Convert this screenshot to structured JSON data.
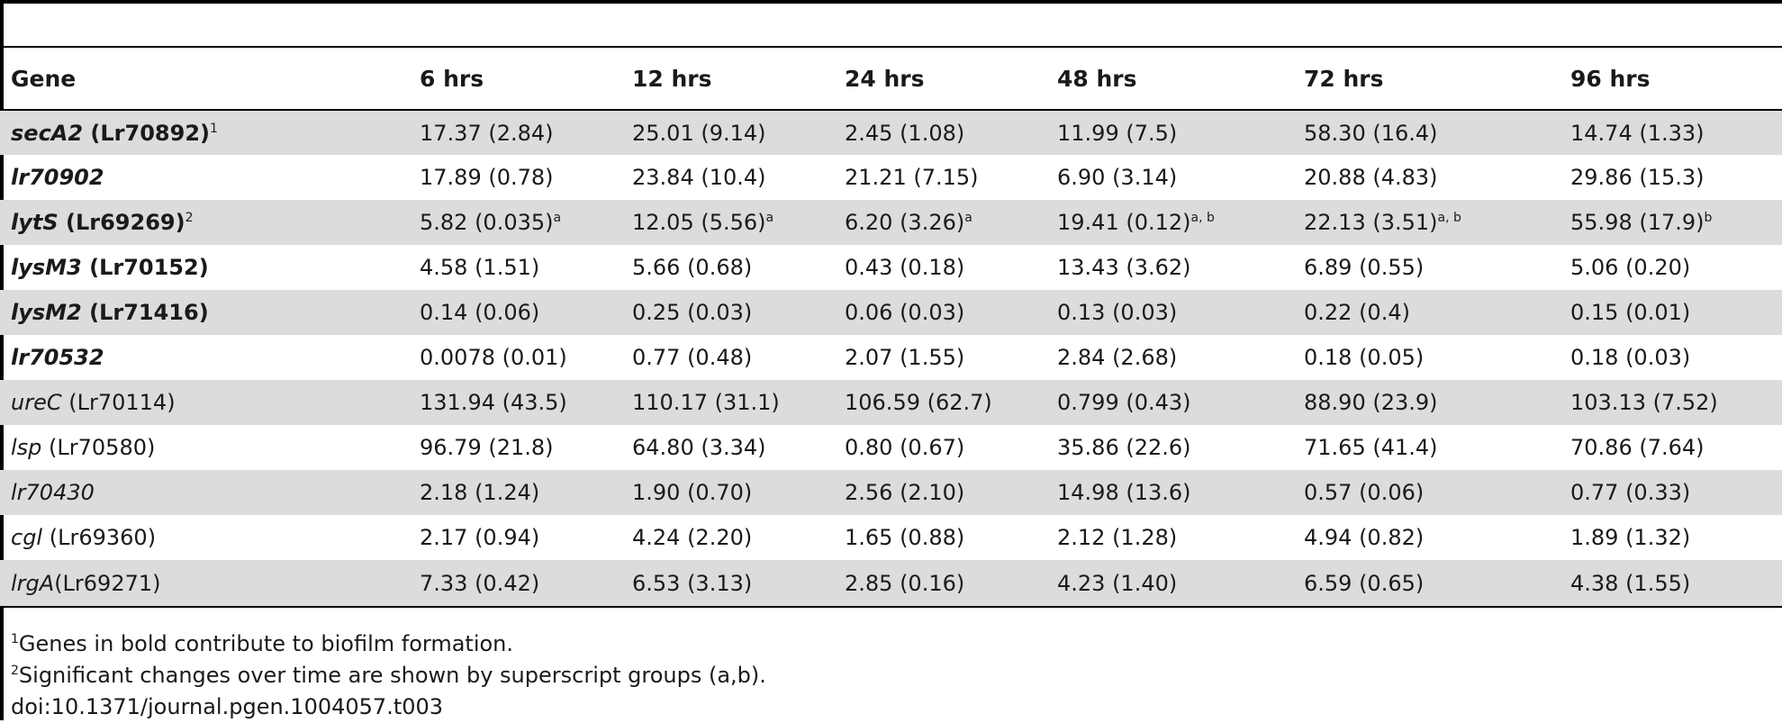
{
  "table": {
    "headers": [
      "Gene",
      "6 hrs",
      "12 hrs",
      "24 hrs",
      "48 hrs",
      "72 hrs",
      "96 hrs"
    ],
    "rows": [
      {
        "gene_italic": "secA2",
        "gene_suffix": " (Lr70892)",
        "gene_sup": "1",
        "bold": true,
        "shaded": true,
        "cells": [
          {
            "v": "17.37 (2.84)",
            "s": ""
          },
          {
            "v": "25.01 (9.14)",
            "s": ""
          },
          {
            "v": "2.45 (1.08)",
            "s": ""
          },
          {
            "v": "11.99 (7.5)",
            "s": ""
          },
          {
            "v": "58.30 (16.4)",
            "s": ""
          },
          {
            "v": "14.74 (1.33)",
            "s": ""
          }
        ]
      },
      {
        "gene_italic": "lr70902",
        "gene_suffix": "",
        "gene_sup": "",
        "bold": true,
        "shaded": false,
        "cells": [
          {
            "v": "17.89 (0.78)",
            "s": ""
          },
          {
            "v": "23.84 (10.4)",
            "s": ""
          },
          {
            "v": "21.21 (7.15)",
            "s": ""
          },
          {
            "v": "6.90 (3.14)",
            "s": ""
          },
          {
            "v": "20.88 (4.83)",
            "s": ""
          },
          {
            "v": "29.86 (15.3)",
            "s": ""
          }
        ]
      },
      {
        "gene_italic": "lytS",
        "gene_suffix": " (Lr69269)",
        "gene_sup": "2",
        "bold": true,
        "shaded": true,
        "cells": [
          {
            "v": "5.82 (0.035)",
            "s": "a"
          },
          {
            "v": "12.05 (5.56)",
            "s": "a"
          },
          {
            "v": "6.20 (3.26)",
            "s": "a"
          },
          {
            "v": "19.41 (0.12)",
            "s": "a, b"
          },
          {
            "v": "22.13 (3.51)",
            "s": "a, b"
          },
          {
            "v": "55.98 (17.9)",
            "s": "b"
          }
        ]
      },
      {
        "gene_italic": "lysM3",
        "gene_suffix": " (Lr70152)",
        "gene_sup": "",
        "bold": true,
        "shaded": false,
        "cells": [
          {
            "v": "4.58 (1.51)",
            "s": ""
          },
          {
            "v": "5.66 (0.68)",
            "s": ""
          },
          {
            "v": "0.43 (0.18)",
            "s": ""
          },
          {
            "v": "13.43 (3.62)",
            "s": ""
          },
          {
            "v": "6.89 (0.55)",
            "s": ""
          },
          {
            "v": "5.06 (0.20)",
            "s": ""
          }
        ]
      },
      {
        "gene_italic": "lysM2",
        "gene_suffix": " (Lr71416)",
        "gene_sup": "",
        "bold": true,
        "shaded": true,
        "cells": [
          {
            "v": "0.14 (0.06)",
            "s": ""
          },
          {
            "v": "0.25 (0.03)",
            "s": ""
          },
          {
            "v": "0.06 (0.03)",
            "s": ""
          },
          {
            "v": "0.13 (0.03)",
            "s": ""
          },
          {
            "v": "0.22 (0.4)",
            "s": ""
          },
          {
            "v": "0.15 (0.01)",
            "s": ""
          }
        ]
      },
      {
        "gene_italic": "lr70532",
        "gene_suffix": "",
        "gene_sup": "",
        "bold": true,
        "shaded": false,
        "cells": [
          {
            "v": "0.0078 (0.01)",
            "s": ""
          },
          {
            "v": "0.77 (0.48)",
            "s": ""
          },
          {
            "v": "2.07 (1.55)",
            "s": ""
          },
          {
            "v": "2.84 (2.68)",
            "s": ""
          },
          {
            "v": "0.18 (0.05)",
            "s": ""
          },
          {
            "v": "0.18 (0.03)",
            "s": ""
          }
        ]
      },
      {
        "gene_italic": "ureC",
        "gene_suffix": " (Lr70114)",
        "gene_sup": "",
        "bold": false,
        "shaded": true,
        "cells": [
          {
            "v": "131.94 (43.5)",
            "s": ""
          },
          {
            "v": "110.17 (31.1)",
            "s": ""
          },
          {
            "v": "106.59 (62.7)",
            "s": ""
          },
          {
            "v": "0.799 (0.43)",
            "s": ""
          },
          {
            "v": "88.90 (23.9)",
            "s": ""
          },
          {
            "v": "103.13 (7.52)",
            "s": ""
          }
        ]
      },
      {
        "gene_italic": "lsp",
        "gene_suffix": " (Lr70580)",
        "gene_sup": "",
        "bold": false,
        "shaded": false,
        "cells": [
          {
            "v": "96.79 (21.8)",
            "s": ""
          },
          {
            "v": "64.80 (3.34)",
            "s": ""
          },
          {
            "v": "0.80 (0.67)",
            "s": ""
          },
          {
            "v": "35.86 (22.6)",
            "s": ""
          },
          {
            "v": "71.65 (41.4)",
            "s": ""
          },
          {
            "v": "70.86 (7.64)",
            "s": ""
          }
        ]
      },
      {
        "gene_italic": "lr70430",
        "gene_suffix": "",
        "gene_sup": "",
        "bold": false,
        "shaded": true,
        "cells": [
          {
            "v": "2.18 (1.24)",
            "s": ""
          },
          {
            "v": "1.90 (0.70)",
            "s": ""
          },
          {
            "v": "2.56 (2.10)",
            "s": ""
          },
          {
            "v": "14.98 (13.6)",
            "s": ""
          },
          {
            "v": "0.57 (0.06)",
            "s": ""
          },
          {
            "v": "0.77 (0.33)",
            "s": ""
          }
        ]
      },
      {
        "gene_italic": "cgl",
        "gene_suffix": " (Lr69360)",
        "gene_sup": "",
        "bold": false,
        "shaded": false,
        "cells": [
          {
            "v": "2.17 (0.94)",
            "s": ""
          },
          {
            "v": "4.24 (2.20)",
            "s": ""
          },
          {
            "v": "1.65 (0.88)",
            "s": ""
          },
          {
            "v": "2.12 (1.28)",
            "s": ""
          },
          {
            "v": "4.94 (0.82)",
            "s": ""
          },
          {
            "v": "1.89 (1.32)",
            "s": ""
          }
        ]
      },
      {
        "gene_italic": "lrgA",
        "gene_suffix": "(Lr69271)",
        "gene_sup": "",
        "bold": false,
        "shaded": true,
        "cells": [
          {
            "v": "7.33 (0.42)",
            "s": ""
          },
          {
            "v": "6.53 (3.13)",
            "s": ""
          },
          {
            "v": "2.85 (0.16)",
            "s": ""
          },
          {
            "v": "4.23 (1.40)",
            "s": ""
          },
          {
            "v": "6.59 (0.65)",
            "s": ""
          },
          {
            "v": "4.38 (1.55)",
            "s": ""
          }
        ]
      }
    ]
  },
  "footnotes": [
    {
      "sup": "1",
      "text": "Genes in bold contribute to biofilm formation."
    },
    {
      "sup": "2",
      "text": "Significant changes over time are shown by superscript groups (a,b)."
    },
    {
      "sup": "",
      "text": "doi:10.1371/journal.pgen.1004057.t003"
    }
  ]
}
